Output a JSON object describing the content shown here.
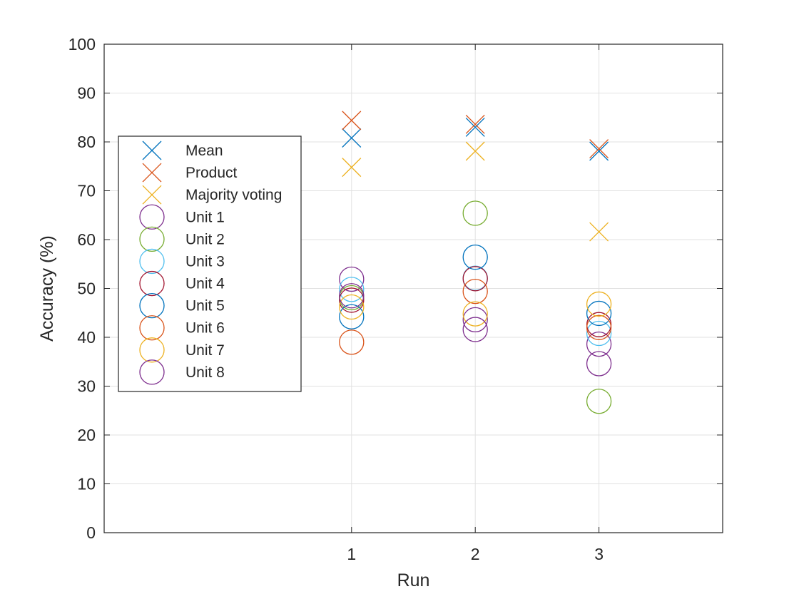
{
  "chart_data": {
    "type": "scatter",
    "xlabel": "Run",
    "ylabel": "Accuracy (%)",
    "xlim": [
      -1,
      4
    ],
    "ylim": [
      0,
      100
    ],
    "x_ticks": [
      1,
      2,
      3
    ],
    "y_ticks": [
      0,
      10,
      20,
      30,
      40,
      50,
      60,
      70,
      80,
      90,
      100
    ],
    "grid": true,
    "legend_position": "upper-left",
    "series": [
      {
        "name": "Mean",
        "marker": "x",
        "color": "#0072BD",
        "x": [
          1,
          2,
          3
        ],
        "y": [
          80.8,
          83.0,
          78.1
        ]
      },
      {
        "name": "Product",
        "marker": "x",
        "color": "#D95319",
        "x": [
          1,
          2,
          3
        ],
        "y": [
          84.4,
          83.6,
          78.6
        ]
      },
      {
        "name": "Majority voting",
        "marker": "x",
        "color": "#EDB120",
        "x": [
          1,
          2,
          3
        ],
        "y": [
          74.8,
          78.1,
          61.6
        ]
      },
      {
        "name": "Unit 1",
        "marker": "o",
        "color": "#7E2F8E",
        "x": [
          1,
          2,
          3
        ],
        "y": [
          51.9,
          43.6,
          38.6
        ]
      },
      {
        "name": "Unit 2",
        "marker": "o",
        "color": "#77AC30",
        "x": [
          1,
          2,
          3
        ],
        "y": [
          48.1,
          65.4,
          26.9
        ]
      },
      {
        "name": "Unit 3",
        "marker": "o",
        "color": "#4DBEEE",
        "x": [
          1,
          2,
          3
        ],
        "y": [
          49.8,
          52.1,
          40.8
        ]
      },
      {
        "name": "Unit 4",
        "marker": "o",
        "color": "#A2142F",
        "x": [
          1,
          2,
          3
        ],
        "y": [
          47.6,
          52.0,
          42.6
        ]
      },
      {
        "name": "Unit 5",
        "marker": "o",
        "color": "#0072BD",
        "x": [
          1,
          2,
          3
        ],
        "y": [
          44.2,
          56.4,
          44.9
        ]
      },
      {
        "name": "Unit 6",
        "marker": "o",
        "color": "#D95319",
        "x": [
          1,
          2,
          3
        ],
        "y": [
          39.0,
          49.4,
          42.0
        ]
      },
      {
        "name": "Unit 7",
        "marker": "o",
        "color": "#EDB120",
        "x": [
          1,
          2,
          3
        ],
        "y": [
          46.2,
          44.8,
          46.8
        ]
      },
      {
        "name": "Unit 8",
        "marker": "o",
        "color": "#7E2F8E",
        "x": [
          1,
          2,
          3
        ],
        "y": [
          48.5,
          41.6,
          34.6
        ]
      }
    ]
  },
  "colors": {
    "grid": "#e1e1e1",
    "axis": "#262626"
  }
}
